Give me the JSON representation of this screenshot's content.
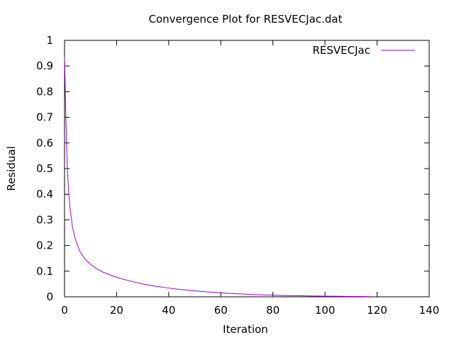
{
  "chart_data": {
    "type": "line",
    "title": "Convergence Plot for RESVECJac.dat",
    "xlabel": "Iteration",
    "ylabel": "Residual",
    "xlim": [
      0,
      140
    ],
    "ylim": [
      0,
      1
    ],
    "xticks": [
      0,
      20,
      40,
      60,
      80,
      100,
      120,
      140
    ],
    "yticks": [
      0,
      0.1,
      0.2,
      0.3,
      0.4,
      0.5,
      0.6,
      0.7,
      0.8,
      0.9,
      1
    ],
    "xtick_labels": [
      "0",
      "20",
      "40",
      "60",
      "80",
      "100",
      "120",
      "140"
    ],
    "ytick_labels": [
      "0",
      "0.1",
      "0.2",
      "0.3",
      "0.4",
      "0.5",
      "0.6",
      "0.7",
      "0.8",
      "0.9",
      "1"
    ],
    "grid": false,
    "legend_position": "top-right",
    "series": [
      {
        "name": "RESVECJac",
        "color": "#9400d3",
        "x": [
          0,
          0.5,
          1,
          1.5,
          2,
          3,
          4,
          5,
          6,
          8,
          10,
          12,
          15,
          20,
          25,
          30,
          35,
          40,
          45,
          50,
          55,
          60,
          65,
          70,
          75,
          80,
          85,
          90,
          95,
          100,
          105,
          110,
          115,
          117
        ],
        "y": [
          0.935,
          0.7,
          0.52,
          0.42,
          0.355,
          0.275,
          0.23,
          0.2,
          0.175,
          0.145,
          0.127,
          0.112,
          0.095,
          0.076,
          0.062,
          0.05,
          0.041,
          0.034,
          0.028,
          0.023,
          0.019,
          0.0155,
          0.0125,
          0.01,
          0.008,
          0.0065,
          0.005,
          0.004,
          0.0032,
          0.0025,
          0.002,
          0.0015,
          0.0012,
          0.001
        ]
      }
    ]
  }
}
